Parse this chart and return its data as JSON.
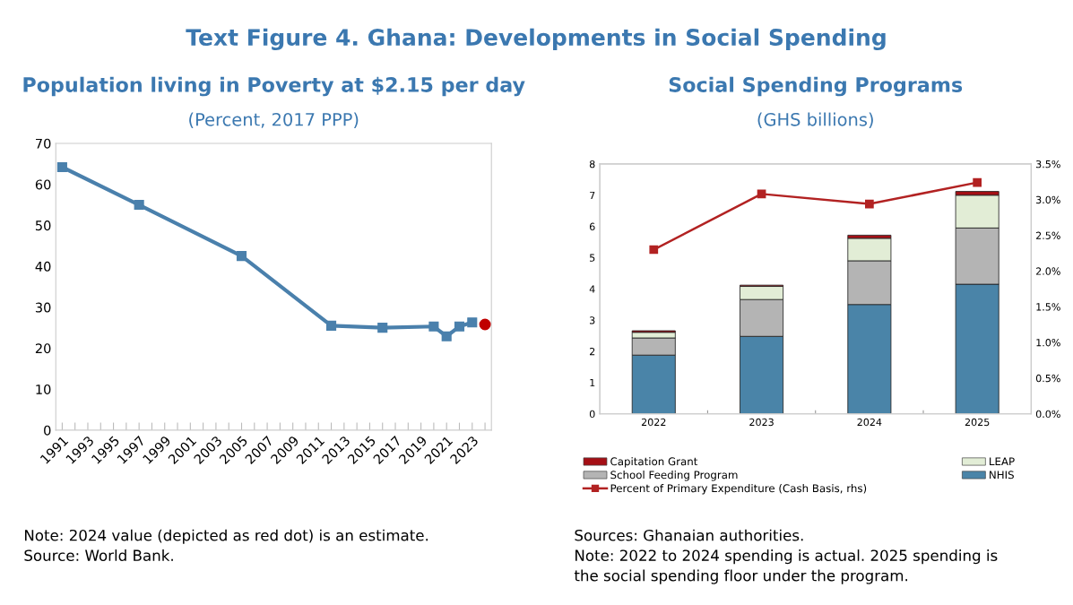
{
  "chart_data": [
    {
      "type": "line",
      "title": "Population living in Poverty at $2.15 per day",
      "subtitle": "(Percent, 2017 PPP)",
      "annotations": [
        "Text Figure 4. Ghana: Developments in Social Spending",
        "Note: 2024 value (depicted as red dot) is an estimate.\nSource: World Bank."
      ],
      "series": [
        {
          "color": "#4a80ac",
          "marker": "square",
          "x": [
            1991,
            1997,
            2005,
            2012,
            2016,
            2020,
            2021,
            2022,
            2023
          ],
          "values": [
            64.2,
            55.0,
            42.5,
            25.5,
            25.0,
            25.3,
            22.9,
            25.3,
            26.3
          ]
        },
        {
          "type": "scatter",
          "color": "#c00000",
          "marker": "circle",
          "x": [
            2024
          ],
          "values": [
            25.8
          ]
        }
      ],
      "xlim": [
        1990.5,
        2024.5
      ],
      "xticks": [
        1991,
        {
          "value": 1992,
          "label": null
        },
        1993,
        {
          "value": 1994,
          "label": null
        },
        1995,
        {
          "value": 1996,
          "label": null
        },
        1997,
        {
          "value": 1998,
          "label": null
        },
        1999,
        {
          "value": 2000,
          "label": null
        },
        2001,
        {
          "value": 2002,
          "label": null
        },
        2003,
        {
          "value": 2004,
          "label": null
        },
        2005,
        {
          "value": 2006,
          "label": null
        },
        2007,
        {
          "value": 2008,
          "label": null
        },
        2009,
        {
          "value": 2010,
          "label": null
        },
        2011,
        {
          "value": 2012,
          "label": null
        },
        2013,
        {
          "value": 2014,
          "label": null
        },
        2015,
        {
          "value": 2016,
          "label": null
        },
        2017,
        {
          "value": 2018,
          "label": null
        },
        2019,
        {
          "value": 2020,
          "label": null
        },
        2021,
        {
          "value": 2022,
          "label": null
        },
        2023,
        {
          "value": 2024,
          "label": null
        }
      ],
      "ylim": [
        0,
        70
      ],
      "yticks": [
        0,
        10,
        20,
        30,
        40,
        50,
        60,
        70
      ],
      "grid": false,
      "legend": false
    },
    {
      "type": "bar",
      "stacked": true,
      "title": "Social Spending Programs",
      "subtitle": "(GHS billions)",
      "annotations": [
        "Sources: Ghanaian authorities.\nNote: 2022 to 2024 spending is actual. 2025 spending is\nthe social spending floor under the program."
      ],
      "categories": [
        "2022",
        "2023",
        "2024",
        "2025"
      ],
      "series": [
        {
          "name": "NHIS",
          "color": "#4a84a8",
          "values": [
            1.88,
            2.48,
            3.5,
            4.15
          ]
        },
        {
          "name": "School Feeding Program",
          "color": "#b4b4b4",
          "values": [
            0.55,
            1.18,
            1.4,
            1.8
          ]
        },
        {
          "name": "LEAP",
          "color": "#e2edd6",
          "values": [
            0.18,
            0.42,
            0.72,
            1.05
          ]
        },
        {
          "name": "Capitation Grant",
          "color": "#a50f15",
          "values": [
            0.05,
            0.04,
            0.1,
            0.12
          ]
        },
        {
          "name": "Percent of Primary Expenditure (Cash Basis, rhs)",
          "type": "line",
          "axis": "y2",
          "color": "#b22222",
          "marker": "square",
          "values": [
            2.3,
            3.08,
            2.94,
            3.24
          ]
        }
      ],
      "ylim": [
        0,
        8
      ],
      "yticks": [
        0,
        1,
        2,
        3,
        4,
        5,
        6,
        7,
        8
      ],
      "y2lim": [
        0,
        3.5
      ],
      "y2ticks": [
        {
          "value": 0,
          "label": "0.0%"
        },
        {
          "value": 0.5,
          "label": "0.5%"
        },
        {
          "value": 1,
          "label": "1.0%"
        },
        {
          "value": 1.5,
          "label": "1.5%"
        },
        {
          "value": 2,
          "label": "2.0%"
        },
        {
          "value": 2.5,
          "label": "2.5%"
        },
        {
          "value": 3,
          "label": "3.0%"
        },
        {
          "value": 3.5,
          "label": "3.5%"
        }
      ],
      "grid": false,
      "legend": "bottom"
    }
  ]
}
